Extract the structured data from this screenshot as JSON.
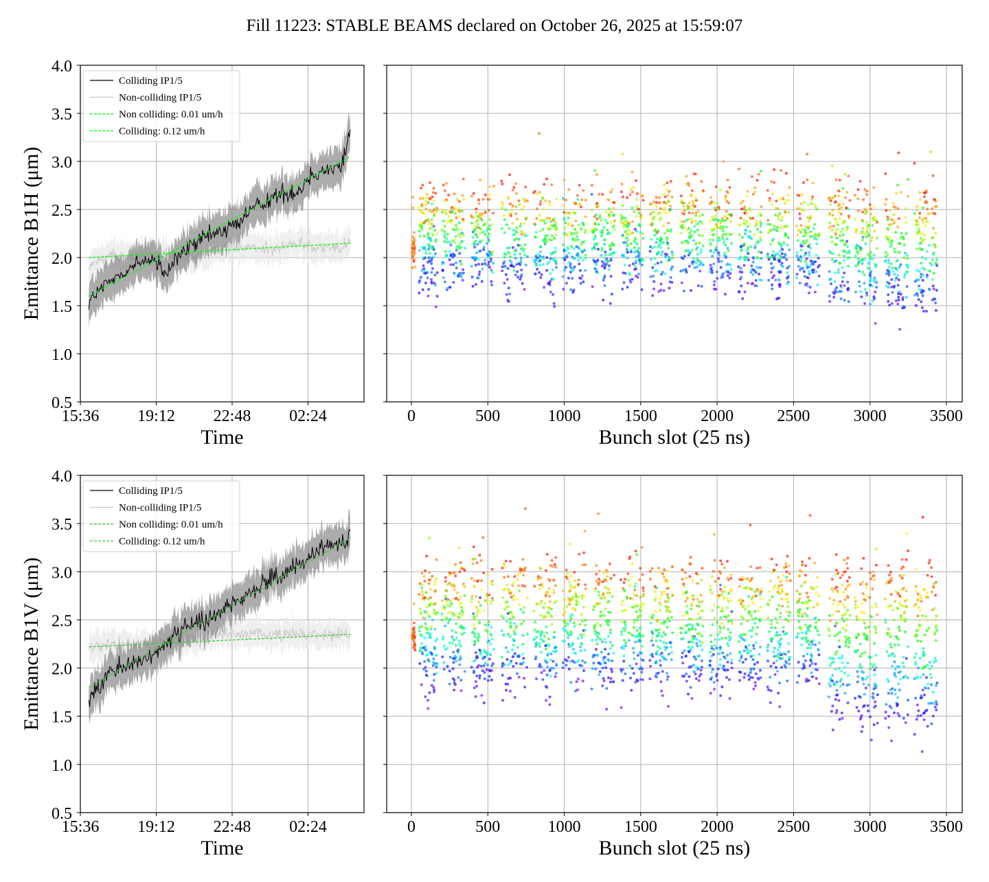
{
  "title": "Fill 11223: STABLE BEAMS declared on October 26, 2025 at 15:59:07",
  "colors": {
    "colliding": "#000000",
    "colliding_band": "#808080",
    "non_colliding": "#c8c8c8",
    "non_colliding_band": "#e4e4e4",
    "fit_top": "#00ff00",
    "fit_bottom": "#33cc33",
    "grid": "#b0b0b0"
  },
  "chart_data": [
    {
      "type": "line",
      "panel": "top-left",
      "xlabel": "Time",
      "ylabel": "Emittance B1H (μm)",
      "ylim": [
        0.5,
        4.0
      ],
      "yticks": [
        "0.5",
        "1.0",
        "1.5",
        "2.0",
        "2.5",
        "3.0",
        "3.5",
        "4.0"
      ],
      "xticks": [
        "15:36",
        "19:12",
        "22:48",
        "02:24"
      ],
      "grid": true,
      "legend": "top-left",
      "series": [
        {
          "name": "Colliding IP1/5",
          "x": [
            "16:00",
            "17:00",
            "18:00",
            "19:00",
            "19:40",
            "20:00",
            "21:00",
            "22:00",
            "23:00",
            "00:00",
            "01:00",
            "02:00",
            "02:30",
            "03:00",
            "04:00",
            "04:25"
          ],
          "y": [
            1.55,
            1.75,
            1.9,
            2.0,
            1.8,
            1.95,
            2.15,
            2.25,
            2.35,
            2.55,
            2.65,
            2.7,
            2.85,
            2.9,
            2.95,
            3.35
          ]
        },
        {
          "name": "Non-colliding IP1/5",
          "x": [
            "16:00",
            "17:00",
            "18:00",
            "19:00",
            "20:00",
            "21:00",
            "22:00",
            "23:00",
            "00:00",
            "01:00",
            "02:00",
            "03:00",
            "04:00",
            "04:25"
          ],
          "y": [
            1.9,
            2.05,
            2.0,
            2.05,
            2.0,
            2.0,
            2.1,
            2.1,
            2.1,
            2.1,
            2.15,
            2.1,
            2.1,
            2.2
          ]
        },
        {
          "name": "Non colliding: 0.01 um/h",
          "style": "dashed",
          "x": [
            "16:00",
            "04:25"
          ],
          "y": [
            2.0,
            2.15
          ]
        },
        {
          "name": "Colliding: 0.12 um/h",
          "style": "dashed",
          "x": [
            "16:00",
            "04:25"
          ],
          "y": [
            1.6,
            3.05
          ]
        }
      ]
    },
    {
      "type": "scatter",
      "panel": "top-right",
      "xlabel": "Bunch slot (25 ns)",
      "xlim": [
        -150,
        3600
      ],
      "ylim": [
        0.5,
        4.0
      ],
      "xticks": [
        "0",
        "500",
        "1000",
        "1500",
        "2000",
        "2500",
        "3000",
        "3500"
      ],
      "grid": true,
      "colormap": "rainbow (purple = start of fill, red = end of fill)",
      "trains": [
        [
          5,
          25
        ],
        [
          50,
          170
        ],
        [
          200,
          350
        ],
        [
          390,
          540
        ],
        [
          590,
          760
        ],
        [
          800,
          950
        ],
        [
          990,
          1140
        ],
        [
          1180,
          1330
        ],
        [
          1370,
          1520
        ],
        [
          1560,
          1710
        ],
        [
          1760,
          1910
        ],
        [
          1950,
          2100
        ],
        [
          2140,
          2290
        ],
        [
          2330,
          2480
        ],
        [
          2520,
          2670
        ],
        [
          2730,
          2870
        ],
        [
          2900,
          3050
        ],
        [
          3100,
          3250
        ],
        [
          3290,
          3440
        ]
      ],
      "emittance_start": 1.75,
      "emittance_end": 2.65,
      "emittance_start_late_trains": 1.5
    },
    {
      "type": "line",
      "panel": "bottom-left",
      "xlabel": "Time",
      "ylabel": "Emittance B1V (μm)",
      "ylim": [
        0.5,
        4.0
      ],
      "yticks": [
        "0.5",
        "1.0",
        "1.5",
        "2.0",
        "2.5",
        "3.0",
        "3.5",
        "4.0"
      ],
      "xticks": [
        "15:36",
        "19:12",
        "22:48",
        "02:24"
      ],
      "grid": true,
      "legend": "top-left",
      "series": [
        {
          "name": "Colliding IP1/5",
          "x": [
            "16:00",
            "17:00",
            "18:00",
            "19:00",
            "20:00",
            "21:00",
            "22:00",
            "23:00",
            "00:00",
            "01:00",
            "02:00",
            "03:00",
            "04:00",
            "04:25"
          ],
          "y": [
            1.65,
            1.95,
            2.05,
            2.1,
            2.35,
            2.45,
            2.55,
            2.7,
            2.85,
            2.95,
            3.05,
            3.25,
            3.3,
            3.35
          ]
        },
        {
          "name": "Non-colliding IP1/5",
          "x": [
            "16:00",
            "17:00",
            "18:00",
            "19:00",
            "20:00",
            "21:00",
            "22:00",
            "23:00",
            "00:00",
            "01:00",
            "02:00",
            "03:00",
            "04:00",
            "04:25"
          ],
          "y": [
            2.2,
            2.25,
            2.25,
            2.25,
            2.3,
            2.3,
            2.35,
            2.35,
            2.35,
            2.35,
            2.35,
            2.35,
            2.35,
            2.35
          ]
        },
        {
          "name": "Non colliding: 0.01 um/h",
          "style": "dashed",
          "x": [
            "16:00",
            "04:25"
          ],
          "y": [
            2.22,
            2.35
          ]
        },
        {
          "name": "Colliding: 0.12 um/h",
          "style": "dashed",
          "x": [
            "16:00",
            "04:25"
          ],
          "y": [
            1.8,
            3.35
          ]
        }
      ]
    },
    {
      "type": "scatter",
      "panel": "bottom-right",
      "xlabel": "Bunch slot (25 ns)",
      "xlim": [
        -150,
        3600
      ],
      "ylim": [
        0.5,
        4.0
      ],
      "xticks": [
        "0",
        "500",
        "1000",
        "1500",
        "2000",
        "2500",
        "3000",
        "3500"
      ],
      "grid": true,
      "colormap": "rainbow (purple = start of fill, red = end of fill)",
      "trains": [
        [
          5,
          25
        ],
        [
          50,
          170
        ],
        [
          200,
          350
        ],
        [
          390,
          540
        ],
        [
          590,
          760
        ],
        [
          800,
          950
        ],
        [
          990,
          1140
        ],
        [
          1180,
          1330
        ],
        [
          1370,
          1520
        ],
        [
          1560,
          1710
        ],
        [
          1760,
          1910
        ],
        [
          1950,
          2100
        ],
        [
          2140,
          2290
        ],
        [
          2330,
          2480
        ],
        [
          2520,
          2670
        ],
        [
          2730,
          2870
        ],
        [
          2900,
          3050
        ],
        [
          3100,
          3250
        ],
        [
          3290,
          3440
        ]
      ],
      "emittance_start": 1.85,
      "emittance_end": 3.0,
      "emittance_start_late_trains": 1.45
    }
  ]
}
